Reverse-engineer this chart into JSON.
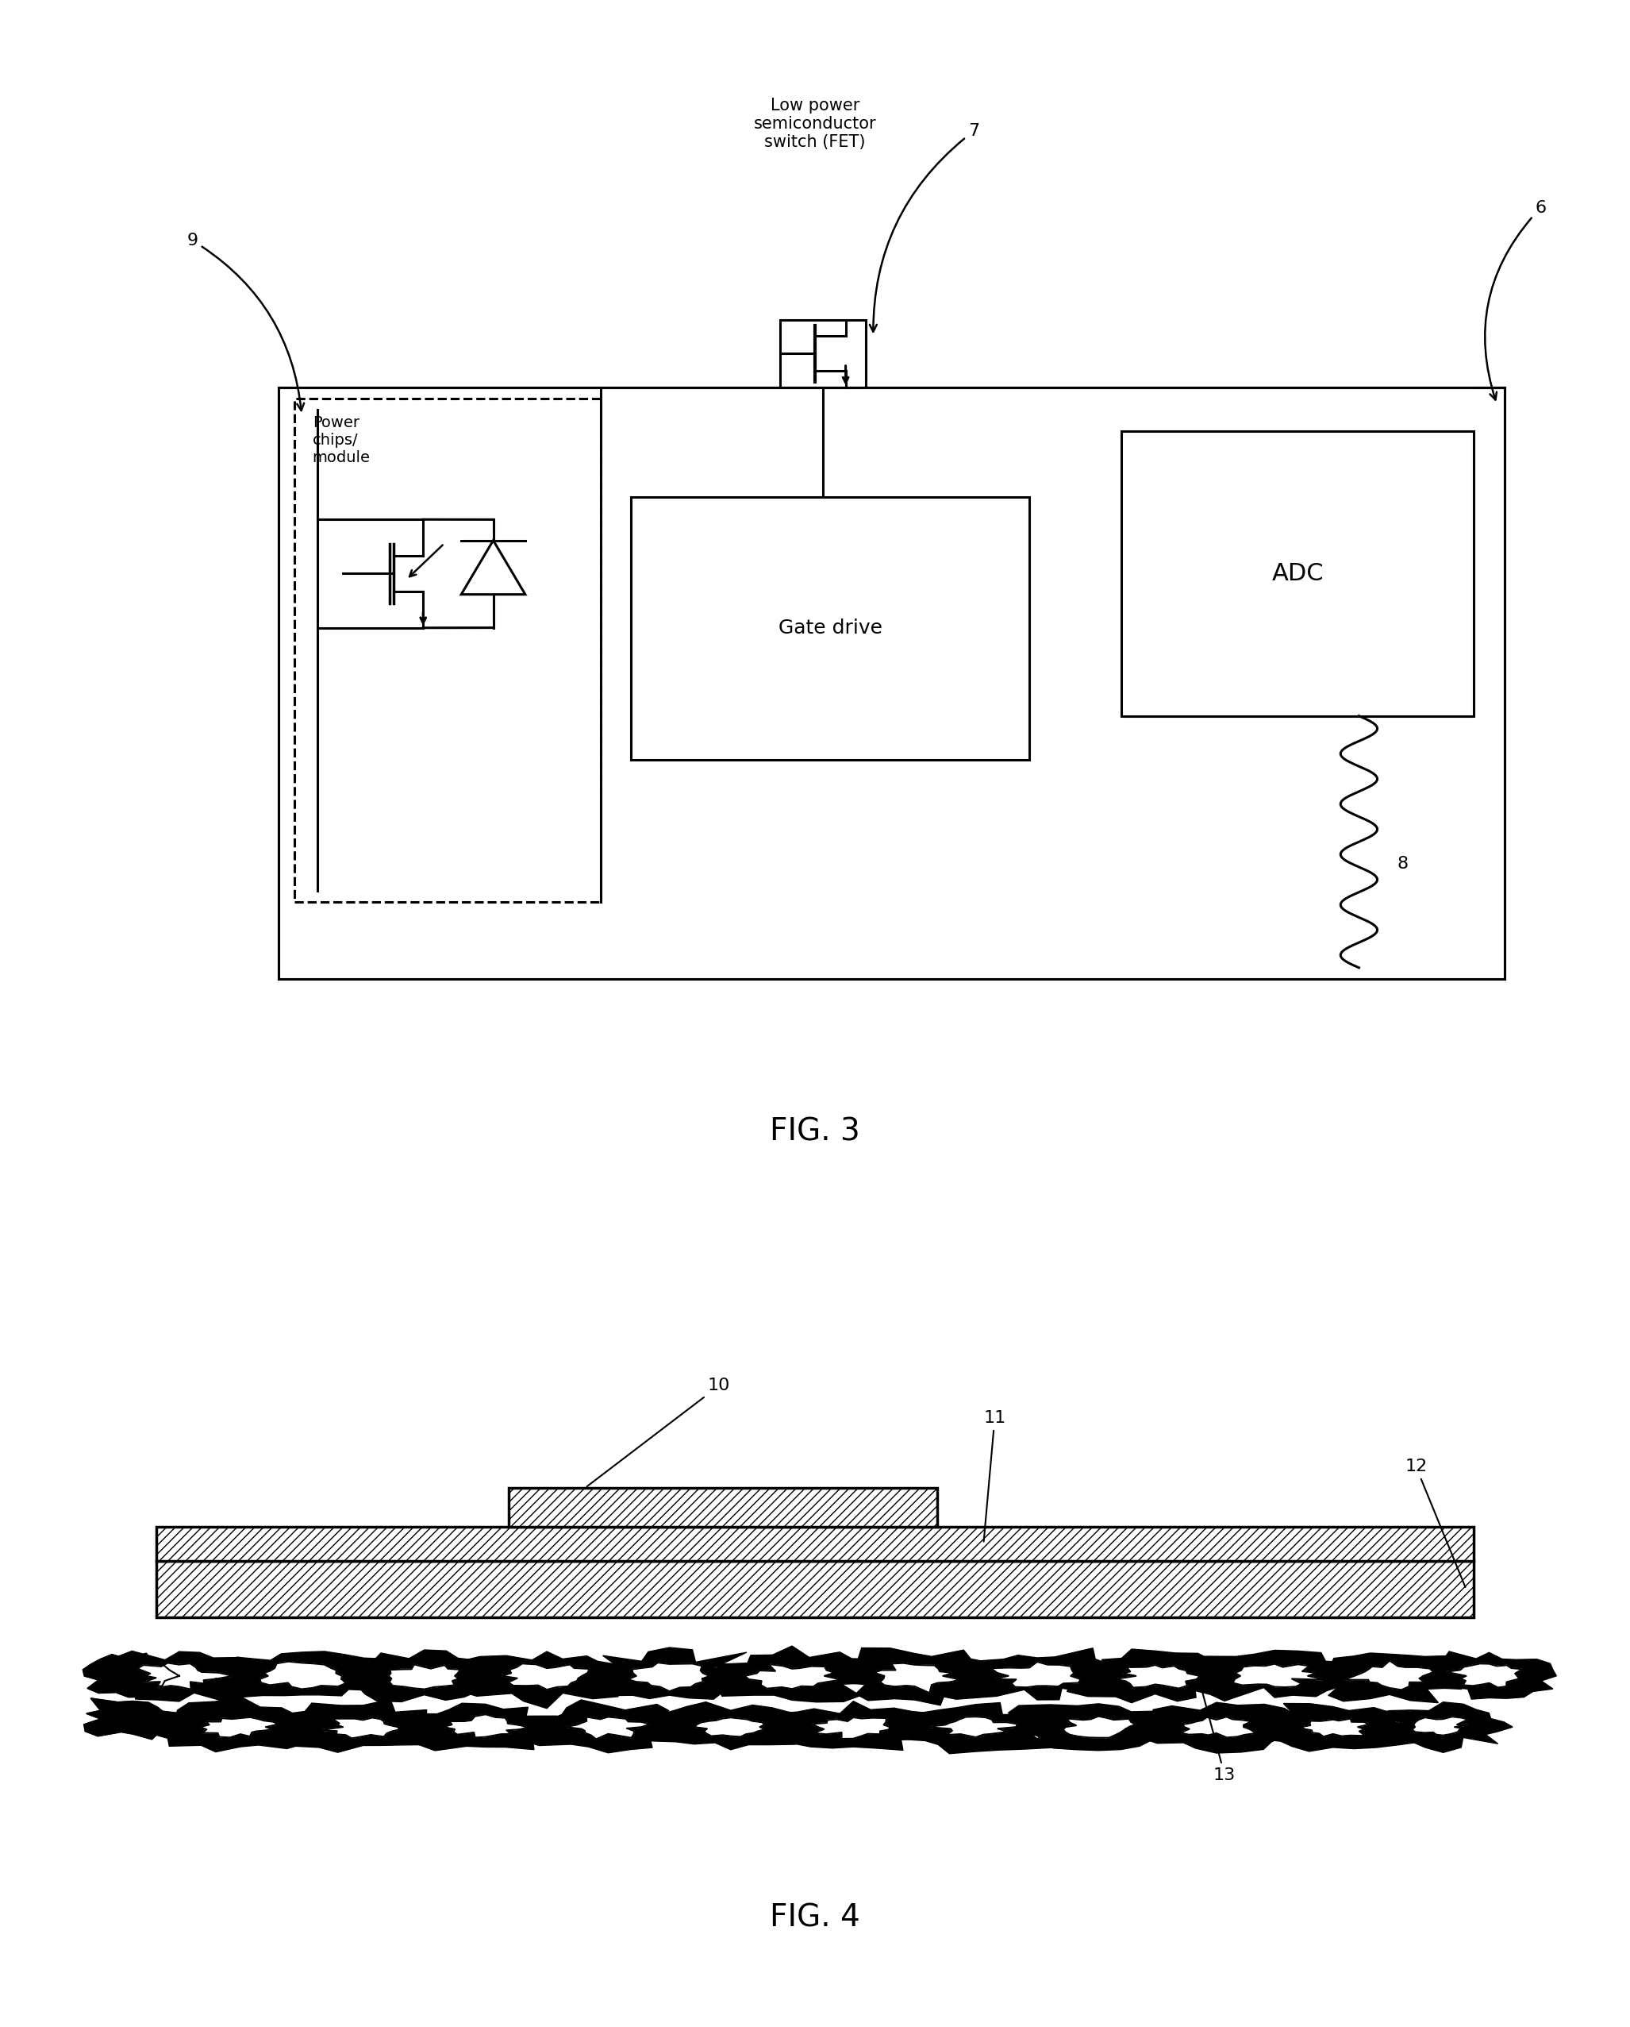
{
  "fig_width": 20.54,
  "fig_height": 25.53,
  "bg_color": "#ffffff",
  "line_color": "#000000",
  "fig3_title": "FIG. 3",
  "fig4_title": "FIG. 4",
  "labels": {
    "low_power": "Low power\nsemiconductor\nswitch (FET)",
    "label7": "7",
    "label6": "6",
    "label9": "9",
    "label8": "8",
    "power_chips": "Power\nchips/\nmodule",
    "gate_drive": "Gate drive",
    "adc": "ADC",
    "label10": "10",
    "label11": "11",
    "label12": "12",
    "label13": "13"
  }
}
